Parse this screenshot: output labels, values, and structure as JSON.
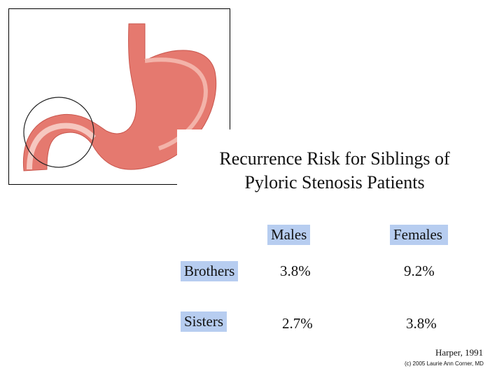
{
  "slide": {
    "title": [
      "Recurrence Risk for Siblings of",
      "Pyloric Stenosis Patients"
    ],
    "table": {
      "columns": [
        "Males",
        "Females"
      ],
      "rows": [
        {
          "label": "Brothers",
          "cells": [
            "3.8%",
            "9.2%"
          ]
        },
        {
          "label": "Sisters",
          "cells": [
            "2.7%",
            "3.8%"
          ]
        }
      ]
    },
    "citation": "Harper, 1991",
    "credit": "(c) 2005 Laurie Ann Corner, MD"
  }
}
